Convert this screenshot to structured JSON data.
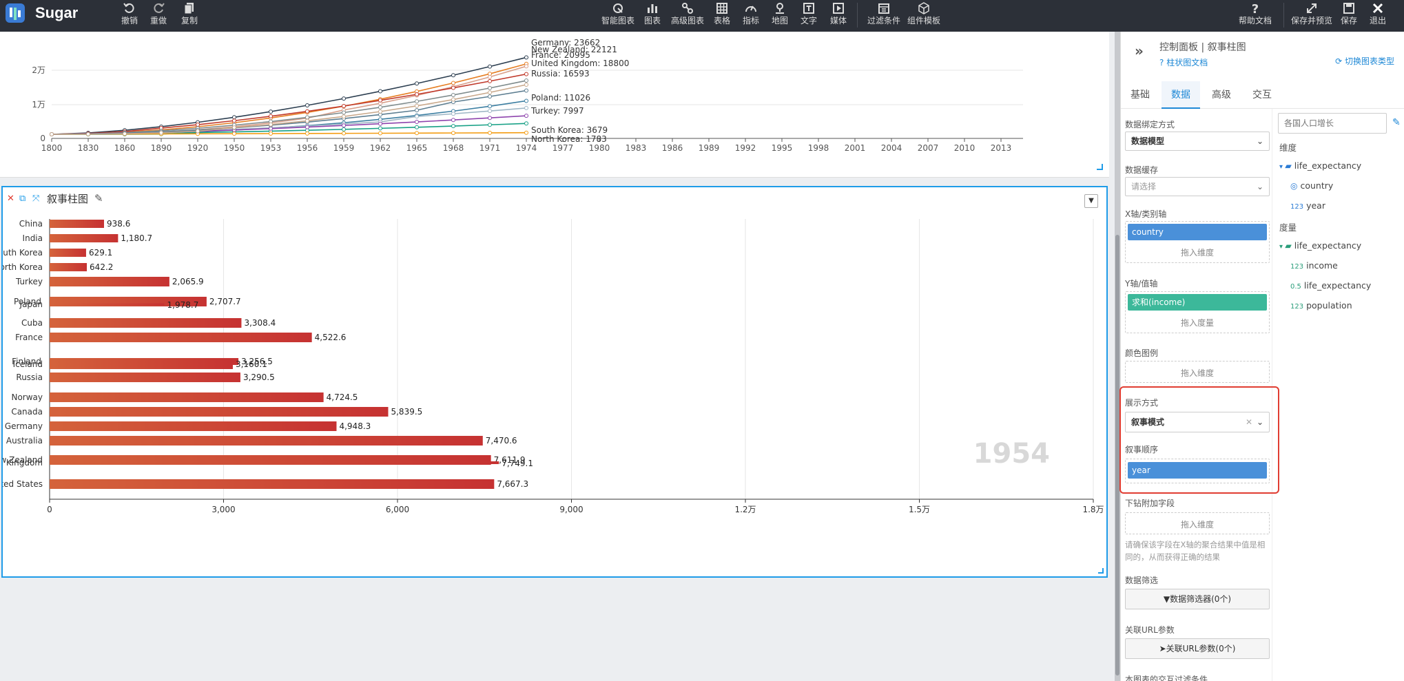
{
  "app": {
    "brand": "Sugar"
  },
  "toolbar": {
    "undo": "撤销",
    "redo": "重做",
    "copy": "复制",
    "smart_chart": "智能图表",
    "chart": "图表",
    "advanced_chart": "高级图表",
    "table": "表格",
    "indicator": "指标",
    "map": "地图",
    "text": "文字",
    "media": "媒体",
    "filter": "过滤条件",
    "component_template": "组件模板",
    "help": "帮助文档",
    "save_preview": "保存并预览",
    "save": "保存",
    "exit": "退出"
  },
  "top_chart": {
    "y_ticks": [
      "2万",
      "1万",
      "0"
    ],
    "x_ticks": [
      "1800",
      "1830",
      "1860",
      "1890",
      "1920",
      "1950",
      "1953",
      "1956",
      "1959",
      "1962",
      "1965",
      "1968",
      "1971",
      "1974",
      "1977",
      "1980",
      "1983",
      "1986",
      "1989",
      "1992",
      "1995",
      "1998",
      "2001",
      "2004",
      "2007",
      "2010",
      "2013"
    ],
    "labels": [
      "Germany: 23662",
      "New Zealand: 22121",
      "France: 20995",
      "United Kingdom: 18800",
      "Russia: 16593",
      "Poland: 11026",
      "Turkey: 7997",
      "South Korea: 3679",
      "North Korea: 1783"
    ]
  },
  "card": {
    "title": "叙事柱图"
  },
  "chart_data": {
    "type": "bar",
    "orientation": "horizontal",
    "categories": [
      "China",
      "India",
      "South Korea",
      "North Korea",
      "Turkey",
      "Poland",
      "Japan",
      "Cuba",
      "France",
      "Finland",
      "Iceland",
      "Russia",
      "Norway",
      "Canada",
      "Germany",
      "Australia",
      "New Zealand",
      "United Kingdom",
      "United States"
    ],
    "series": [
      {
        "name": "income",
        "values": [
          938.6,
          1180.7,
          629.1,
          642.2,
          2065.9,
          2707.7,
          1978.7,
          3308.4,
          4522.6,
          3256.5,
          3160.1,
          3290.5,
          4724.5,
          5839.5,
          4948.3,
          7470.6,
          7611.9,
          7749.1,
          7667.3
        ]
      }
    ],
    "value_labels": [
      "938.6",
      "1,180.7",
      "629.1",
      "642.2",
      "2,065.9",
      "2,707.7",
      "1,978.7",
      "3,308.4",
      "4,522.6",
      "3,256.5",
      "3,160.1",
      "3,290.5",
      "4,724.5",
      "5,839.5",
      "4,948.3",
      "7,470.6",
      "7,611.9",
      "7,749.1",
      "7,667.3"
    ],
    "category_labels": [
      "China",
      "India",
      "uth Korea",
      "orth Korea",
      "Turkey",
      "Poland",
      "Japan",
      "Cuba",
      "France",
      "Finland",
      "Iceland",
      "Russia",
      "Norway",
      "Canada",
      "Germany",
      "Australia",
      "w Zealand",
      "d Kingdom",
      "ted States"
    ],
    "x_ticks": [
      "0",
      "3,000",
      "6,000",
      "9,000",
      "1.2万",
      "1.5万",
      "1.8万"
    ],
    "xlim": [
      0,
      18000
    ],
    "watermark": "1954",
    "legend": "income",
    "legend_position": "bottom-center",
    "grid": true,
    "colors": {
      "bar_start": "#d4633b",
      "bar_end": "#c63232"
    }
  },
  "panel": {
    "title": "控制面板 | 叙事柱图",
    "doc_link": "柱状图文档",
    "switch_type": "切换图表类型",
    "tabs": [
      "基础",
      "数据",
      "高级",
      "交互"
    ],
    "active_tab": "数据",
    "binding_label": "数据绑定方式",
    "binding_value": "数据模型",
    "cache_label": "数据缓存",
    "cache_placeholder": "请选择",
    "x_label": "X轴/类别轴",
    "x_pill": "country",
    "x_drop": "拖入维度",
    "y_label": "Y轴/值轴",
    "y_pill": "求和(income)",
    "y_drop": "拖入度量",
    "color_label": "颜色图例",
    "color_drop": "拖入维度",
    "display_label": "展示方式",
    "display_value": "叙事模式",
    "order_label": "叙事顺序",
    "order_pill": "year",
    "drill_label": "下钻附加字段",
    "drill_drop": "拖入维度",
    "drill_hint": "请确保该字段在X轴的聚合结果中值是相同的，从而获得正确的结果",
    "filter_label": "数据筛选",
    "filter_button": "数据筛选器(0个)",
    "url_label": "关联URL参数",
    "url_button": "关联URL参数(0个)",
    "interaction_label": "本图表的交互过滤条件",
    "colors": {
      "blue_pill": "#4a90d9",
      "green_pill": "#3cb89a",
      "accent": "#1e88d6",
      "highlight": "#e03c31"
    }
  },
  "fields": {
    "search_placeholder": "各国人口增长",
    "dim_label": "维度",
    "dim_folder": "life_expectancy",
    "dims": [
      "country",
      "year"
    ],
    "measure_label": "度量",
    "measure_folder": "life_expectancy",
    "measures": [
      "income",
      "life_expectancy",
      "population"
    ],
    "type_tags": {
      "abc": "",
      "num": "123",
      "dec": "0.5"
    }
  }
}
